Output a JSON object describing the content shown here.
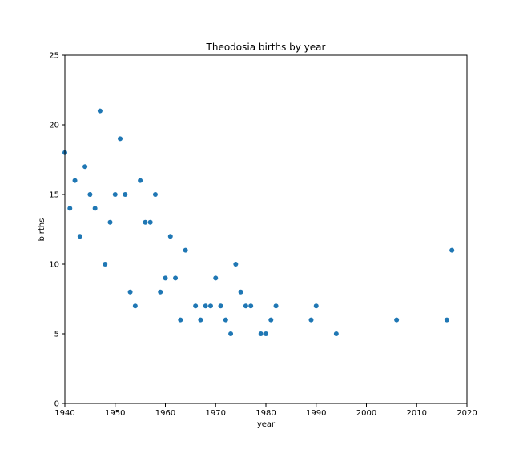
{
  "chart_data": {
    "type": "scatter",
    "title": "Theodosia births by year",
    "xlabel": "year",
    "ylabel": "births",
    "xlim": [
      1940,
      2020
    ],
    "ylim": [
      0,
      25
    ],
    "xticks": [
      "1940",
      "1950",
      "1960",
      "1970",
      "1980",
      "1990",
      "2000",
      "2010",
      "2020"
    ],
    "yticks": [
      "0",
      "5",
      "10",
      "15",
      "20",
      "25"
    ],
    "grid": false,
    "marker_color": "#1f77b4",
    "points": [
      {
        "x": 1940,
        "y": 18
      },
      {
        "x": 1941,
        "y": 14
      },
      {
        "x": 1942,
        "y": 16
      },
      {
        "x": 1943,
        "y": 12
      },
      {
        "x": 1944,
        "y": 17
      },
      {
        "x": 1945,
        "y": 15
      },
      {
        "x": 1946,
        "y": 14
      },
      {
        "x": 1947,
        "y": 21
      },
      {
        "x": 1948,
        "y": 10
      },
      {
        "x": 1949,
        "y": 13
      },
      {
        "x": 1950,
        "y": 15
      },
      {
        "x": 1951,
        "y": 19
      },
      {
        "x": 1952,
        "y": 15
      },
      {
        "x": 1953,
        "y": 8
      },
      {
        "x": 1954,
        "y": 7
      },
      {
        "x": 1955,
        "y": 16
      },
      {
        "x": 1956,
        "y": 13
      },
      {
        "x": 1957,
        "y": 13
      },
      {
        "x": 1958,
        "y": 15
      },
      {
        "x": 1959,
        "y": 8
      },
      {
        "x": 1960,
        "y": 9
      },
      {
        "x": 1961,
        "y": 12
      },
      {
        "x": 1962,
        "y": 9
      },
      {
        "x": 1963,
        "y": 6
      },
      {
        "x": 1964,
        "y": 11
      },
      {
        "x": 1966,
        "y": 7
      },
      {
        "x": 1967,
        "y": 6
      },
      {
        "x": 1968,
        "y": 7
      },
      {
        "x": 1969,
        "y": 7
      },
      {
        "x": 1970,
        "y": 9
      },
      {
        "x": 1971,
        "y": 7
      },
      {
        "x": 1972,
        "y": 6
      },
      {
        "x": 1973,
        "y": 5
      },
      {
        "x": 1974,
        "y": 10
      },
      {
        "x": 1975,
        "y": 8
      },
      {
        "x": 1976,
        "y": 7
      },
      {
        "x": 1977,
        "y": 7
      },
      {
        "x": 1979,
        "y": 5
      },
      {
        "x": 1980,
        "y": 5
      },
      {
        "x": 1981,
        "y": 6
      },
      {
        "x": 1982,
        "y": 7
      },
      {
        "x": 1989,
        "y": 6
      },
      {
        "x": 1990,
        "y": 7
      },
      {
        "x": 1994,
        "y": 5
      },
      {
        "x": 2006,
        "y": 6
      },
      {
        "x": 2016,
        "y": 6
      },
      {
        "x": 2017,
        "y": 11
      }
    ]
  }
}
